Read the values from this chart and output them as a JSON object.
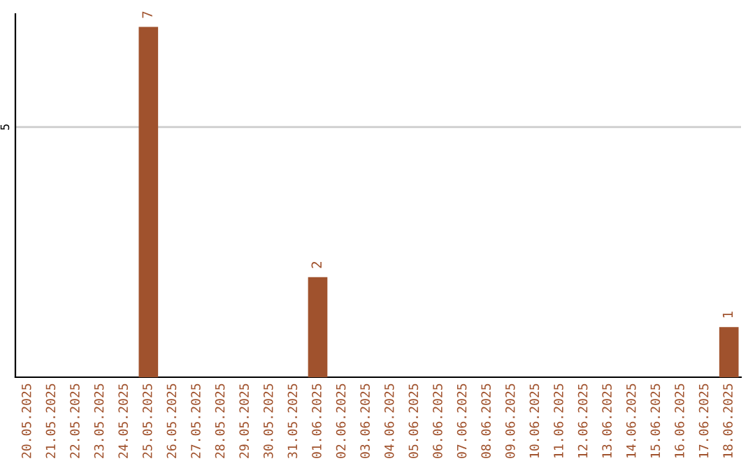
{
  "chart_data": {
    "type": "bar",
    "categories": [
      "20.05.2025",
      "21.05.2025",
      "22.05.2025",
      "23.05.2025",
      "24.05.2025",
      "25.05.2025",
      "26.05.2025",
      "27.05.2025",
      "28.05.2025",
      "29.05.2025",
      "30.05.2025",
      "31.05.2025",
      "01.06.2025",
      "02.06.2025",
      "03.06.2025",
      "04.06.2025",
      "05.06.2025",
      "06.06.2025",
      "07.06.2025",
      "08.06.2025",
      "09.06.2025",
      "10.06.2025",
      "11.06.2025",
      "12.06.2025",
      "13.06.2025",
      "14.06.2025",
      "15.06.2025",
      "16.06.2025",
      "17.06.2025",
      "18.06.2025"
    ],
    "values": [
      0,
      0,
      0,
      0,
      0,
      7,
      0,
      0,
      0,
      0,
      0,
      0,
      2,
      0,
      0,
      0,
      0,
      0,
      0,
      0,
      0,
      0,
      0,
      0,
      0,
      0,
      0,
      0,
      0,
      1
    ],
    "color": "#a0522d",
    "value_labels": [
      null,
      null,
      null,
      null,
      null,
      "7",
      null,
      null,
      null,
      null,
      null,
      null,
      "2",
      null,
      null,
      null,
      null,
      null,
      null,
      null,
      null,
      null,
      null,
      null,
      null,
      null,
      null,
      null,
      null,
      "1"
    ],
    "ylim": [
      0,
      7.26
    ],
    "yticks": [
      5
    ],
    "grid": "y"
  }
}
